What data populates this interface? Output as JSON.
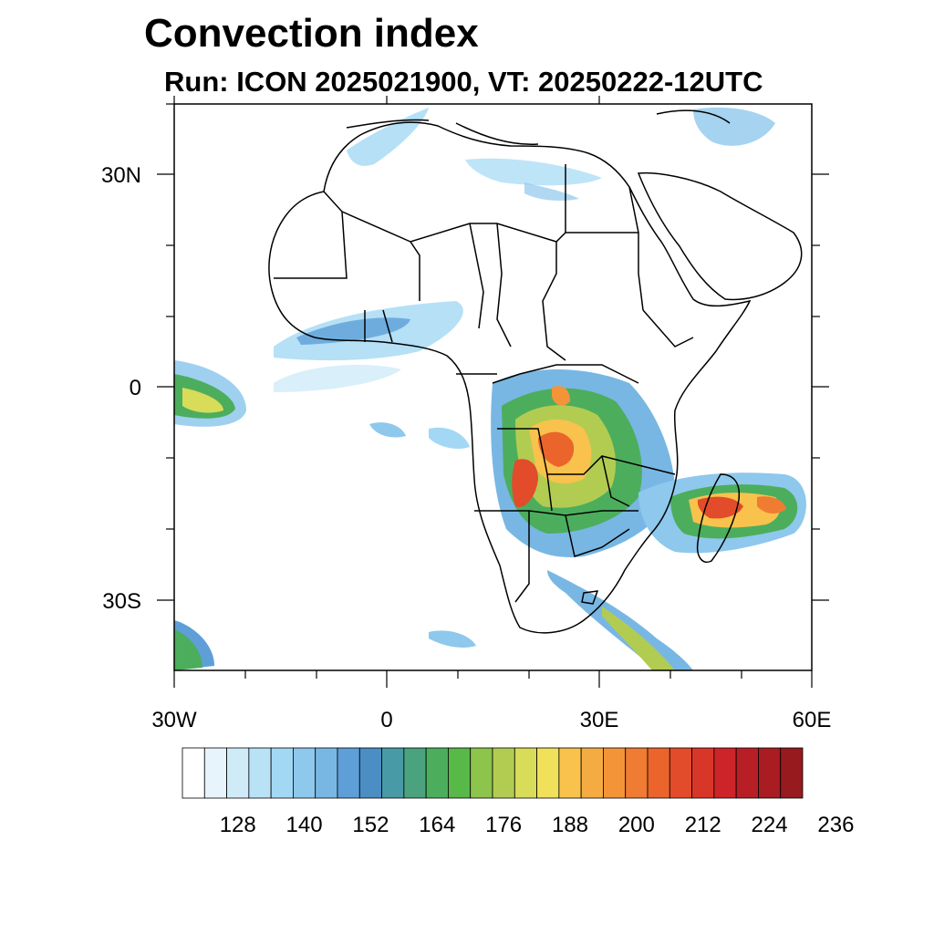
{
  "title": "Convection index",
  "subtitle": "Run: ICON 2025021900,  VT: 20250222-12UTC",
  "map": {
    "lat_labels": [
      "30N",
      "0",
      "30S"
    ],
    "lon_labels": [
      "30W",
      "0",
      "30E",
      "60E"
    ],
    "extent": {
      "lon_min": -30,
      "lon_max": 60,
      "lat_min": -40,
      "lat_max": 40
    }
  },
  "colorbar": {
    "labels": [
      "128",
      "140",
      "152",
      "164",
      "176",
      "188",
      "200",
      "212",
      "224",
      "236"
    ],
    "colors": [
      "#ffffff",
      "#e8f4fb",
      "#d0ebf8",
      "#b9e2f6",
      "#a3d8f4",
      "#8ec8ec",
      "#78b7e3",
      "#5e9fd8",
      "#4a8ec4",
      "#489aa6",
      "#4aa37e",
      "#4cae5c",
      "#58b848",
      "#8cc44c",
      "#b2cc52",
      "#d8dc58",
      "#f0e05a",
      "#f8c24c",
      "#f4ac42",
      "#f49438",
      "#ef7c32",
      "#ea642c",
      "#e24c2a",
      "#d83628",
      "#cc2428",
      "#b81e26",
      "#a81c22",
      "#961a1e"
    ]
  }
}
